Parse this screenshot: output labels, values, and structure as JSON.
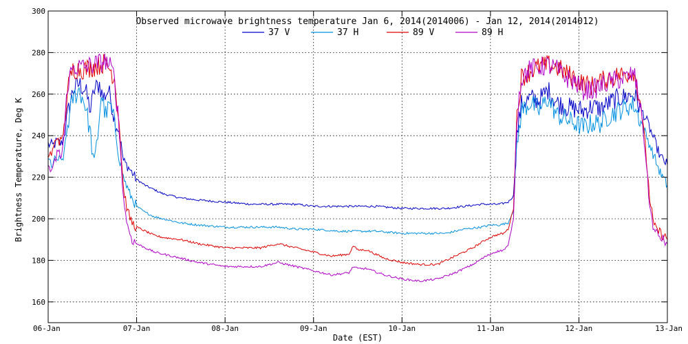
{
  "chart_data": {
    "type": "line",
    "title": "Observed microwave brightness temperature Jan  6, 2014(2014006) - Jan 12, 2014(2014012)",
    "xlabel": "Date (EST)",
    "ylabel": "Brightness Temperature, Deg K",
    "x_tick_labels": [
      "06-Jan",
      "07-Jan",
      "08-Jan",
      "09-Jan",
      "10-Jan",
      "11-Jan",
      "12-Jan",
      "13-Jan"
    ],
    "x_unit": "days since 06-Jan 00:00",
    "xlim": [
      0,
      7
    ],
    "ylim": [
      150,
      300
    ],
    "y_ticks": [
      160,
      180,
      200,
      220,
      240,
      260,
      280,
      300
    ],
    "grid": true,
    "legend_position": "top-center",
    "series": [
      {
        "name": "37 V",
        "color": "#0000c8",
        "points": [
          [
            0,
            236
          ],
          [
            0.05,
            235
          ],
          [
            0.1,
            237
          ],
          [
            0.15,
            236
          ],
          [
            0.18,
            240
          ],
          [
            0.22,
            250
          ],
          [
            0.28,
            262
          ],
          [
            0.35,
            265
          ],
          [
            0.42,
            262
          ],
          [
            0.48,
            252
          ],
          [
            0.52,
            262
          ],
          [
            0.58,
            265
          ],
          [
            0.62,
            258
          ],
          [
            0.68,
            262
          ],
          [
            0.72,
            255
          ],
          [
            0.75,
            248
          ],
          [
            0.8,
            243
          ],
          [
            0.85,
            228
          ],
          [
            0.92,
            224
          ],
          [
            1.0,
            219
          ],
          [
            1.1,
            216
          ],
          [
            1.2,
            214
          ],
          [
            1.3,
            212
          ],
          [
            1.5,
            210
          ],
          [
            1.7,
            209
          ],
          [
            2.0,
            208
          ],
          [
            2.3,
            207
          ],
          [
            2.6,
            207
          ],
          [
            2.8,
            207
          ],
          [
            3.0,
            206
          ],
          [
            3.3,
            206
          ],
          [
            3.5,
            206
          ],
          [
            3.7,
            206
          ],
          [
            4.0,
            205
          ],
          [
            4.2,
            205
          ],
          [
            4.5,
            205
          ],
          [
            4.7,
            206
          ],
          [
            4.9,
            207
          ],
          [
            5.0,
            207
          ],
          [
            5.1,
            207
          ],
          [
            5.2,
            208
          ],
          [
            5.26,
            211
          ],
          [
            5.3,
            240
          ],
          [
            5.35,
            255
          ],
          [
            5.45,
            258
          ],
          [
            5.55,
            257
          ],
          [
            5.65,
            262
          ],
          [
            5.75,
            256
          ],
          [
            5.85,
            254
          ],
          [
            5.95,
            253
          ],
          [
            6.05,
            252
          ],
          [
            6.15,
            254
          ],
          [
            6.25,
            253
          ],
          [
            6.35,
            256
          ],
          [
            6.45,
            258
          ],
          [
            6.55,
            259
          ],
          [
            6.62,
            260
          ],
          [
            6.7,
            253
          ],
          [
            6.78,
            246
          ],
          [
            6.85,
            238
          ],
          [
            6.92,
            230
          ],
          [
            7.0,
            226
          ]
        ]
      },
      {
        "name": "37 H",
        "color": "#0090e0",
        "points": [
          [
            0,
            228
          ],
          [
            0.05,
            226
          ],
          [
            0.1,
            229
          ],
          [
            0.15,
            227
          ],
          [
            0.18,
            232
          ],
          [
            0.22,
            245
          ],
          [
            0.28,
            258
          ],
          [
            0.35,
            262
          ],
          [
            0.42,
            255
          ],
          [
            0.48,
            240
          ],
          [
            0.52,
            225
          ],
          [
            0.56,
            240
          ],
          [
            0.6,
            260
          ],
          [
            0.65,
            250
          ],
          [
            0.7,
            255
          ],
          [
            0.75,
            246
          ],
          [
            0.8,
            232
          ],
          [
            0.85,
            220
          ],
          [
            0.92,
            212
          ],
          [
            1.0,
            206
          ],
          [
            1.1,
            203
          ],
          [
            1.2,
            201
          ],
          [
            1.3,
            200
          ],
          [
            1.5,
            198
          ],
          [
            1.7,
            197
          ],
          [
            2.0,
            196
          ],
          [
            2.3,
            196
          ],
          [
            2.6,
            196
          ],
          [
            2.8,
            195
          ],
          [
            3.0,
            195
          ],
          [
            3.3,
            194
          ],
          [
            3.5,
            194
          ],
          [
            3.7,
            194
          ],
          [
            4.0,
            193
          ],
          [
            4.2,
            193
          ],
          [
            4.5,
            193
          ],
          [
            4.7,
            195
          ],
          [
            4.9,
            196
          ],
          [
            5.0,
            197
          ],
          [
            5.1,
            197
          ],
          [
            5.2,
            198
          ],
          [
            5.26,
            204
          ],
          [
            5.3,
            235
          ],
          [
            5.35,
            252
          ],
          [
            5.45,
            256
          ],
          [
            5.55,
            252
          ],
          [
            5.65,
            258
          ],
          [
            5.75,
            250
          ],
          [
            5.85,
            248
          ],
          [
            5.95,
            246
          ],
          [
            6.05,
            244
          ],
          [
            6.15,
            246
          ],
          [
            6.25,
            246
          ],
          [
            6.35,
            250
          ],
          [
            6.45,
            252
          ],
          [
            6.55,
            254
          ],
          [
            6.62,
            255
          ],
          [
            6.7,
            247
          ],
          [
            6.78,
            238
          ],
          [
            6.85,
            230
          ],
          [
            6.92,
            222
          ],
          [
            7.0,
            216
          ]
        ]
      },
      {
        "name": "89 V",
        "color": "#e00000",
        "points": [
          [
            0,
            230
          ],
          [
            0.05,
            232
          ],
          [
            0.1,
            240
          ],
          [
            0.15,
            236
          ],
          [
            0.18,
            245
          ],
          [
            0.22,
            262
          ],
          [
            0.28,
            272
          ],
          [
            0.35,
            272
          ],
          [
            0.42,
            272
          ],
          [
            0.5,
            273
          ],
          [
            0.58,
            274
          ],
          [
            0.65,
            275
          ],
          [
            0.7,
            272
          ],
          [
            0.75,
            268
          ],
          [
            0.8,
            248
          ],
          [
            0.85,
            215
          ],
          [
            0.9,
            203
          ],
          [
            0.95,
            198
          ],
          [
            1.0,
            196
          ],
          [
            1.1,
            194
          ],
          [
            1.2,
            192
          ],
          [
            1.3,
            191
          ],
          [
            1.5,
            190
          ],
          [
            1.7,
            188
          ],
          [
            2.0,
            186
          ],
          [
            2.2,
            186
          ],
          [
            2.4,
            186
          ],
          [
            2.6,
            188
          ],
          [
            2.8,
            186
          ],
          [
            3.0,
            184
          ],
          [
            3.2,
            182
          ],
          [
            3.4,
            183
          ],
          [
            3.45,
            187
          ],
          [
            3.5,
            185
          ],
          [
            3.6,
            185
          ],
          [
            3.8,
            181
          ],
          [
            4.0,
            179
          ],
          [
            4.2,
            178
          ],
          [
            4.4,
            178
          ],
          [
            4.6,
            182
          ],
          [
            4.8,
            186
          ],
          [
            4.95,
            190
          ],
          [
            5.05,
            192
          ],
          [
            5.15,
            193
          ],
          [
            5.2,
            195
          ],
          [
            5.26,
            205
          ],
          [
            5.3,
            250
          ],
          [
            5.35,
            268
          ],
          [
            5.45,
            271
          ],
          [
            5.55,
            273
          ],
          [
            5.65,
            274
          ],
          [
            5.75,
            273
          ],
          [
            5.85,
            270
          ],
          [
            5.95,
            268
          ],
          [
            6.05,
            265
          ],
          [
            6.15,
            264
          ],
          [
            6.25,
            266
          ],
          [
            6.35,
            268
          ],
          [
            6.45,
            269
          ],
          [
            6.55,
            270
          ],
          [
            6.62,
            271
          ],
          [
            6.7,
            255
          ],
          [
            6.75,
            235
          ],
          [
            6.8,
            210
          ],
          [
            6.85,
            196
          ],
          [
            6.9,
            194
          ],
          [
            6.95,
            192
          ],
          [
            7.0,
            190
          ]
        ]
      },
      {
        "name": "89 H",
        "color": "#b000c8",
        "points": [
          [
            0,
            226
          ],
          [
            0.05,
            222
          ],
          [
            0.1,
            232
          ],
          [
            0.15,
            230
          ],
          [
            0.18,
            240
          ],
          [
            0.22,
            265
          ],
          [
            0.28,
            273
          ],
          [
            0.35,
            273
          ],
          [
            0.42,
            273
          ],
          [
            0.5,
            274
          ],
          [
            0.58,
            275
          ],
          [
            0.65,
            276
          ],
          [
            0.7,
            273
          ],
          [
            0.75,
            268
          ],
          [
            0.8,
            245
          ],
          [
            0.85,
            210
          ],
          [
            0.9,
            196
          ],
          [
            0.95,
            190
          ],
          [
            1.0,
            188
          ],
          [
            1.1,
            186
          ],
          [
            1.2,
            184
          ],
          [
            1.3,
            183
          ],
          [
            1.5,
            181
          ],
          [
            1.7,
            179
          ],
          [
            2.0,
            177
          ],
          [
            2.2,
            177
          ],
          [
            2.4,
            177
          ],
          [
            2.6,
            179
          ],
          [
            2.8,
            177
          ],
          [
            3.0,
            175
          ],
          [
            3.2,
            173
          ],
          [
            3.4,
            174
          ],
          [
            3.45,
            177
          ],
          [
            3.5,
            176
          ],
          [
            3.6,
            176
          ],
          [
            3.8,
            173
          ],
          [
            4.0,
            171
          ],
          [
            4.2,
            170
          ],
          [
            4.4,
            171
          ],
          [
            4.6,
            174
          ],
          [
            4.8,
            178
          ],
          [
            4.95,
            182
          ],
          [
            5.05,
            184
          ],
          [
            5.15,
            185
          ],
          [
            5.2,
            187
          ],
          [
            5.26,
            200
          ],
          [
            5.3,
            250
          ],
          [
            5.35,
            268
          ],
          [
            5.45,
            272
          ],
          [
            5.55,
            273
          ],
          [
            5.65,
            274
          ],
          [
            5.75,
            272
          ],
          [
            5.85,
            268
          ],
          [
            5.95,
            266
          ],
          [
            6.05,
            262
          ],
          [
            6.15,
            262
          ],
          [
            6.25,
            264
          ],
          [
            6.35,
            266
          ],
          [
            6.45,
            267
          ],
          [
            6.55,
            268
          ],
          [
            6.62,
            270
          ],
          [
            6.7,
            255
          ],
          [
            6.75,
            232
          ],
          [
            6.8,
            206
          ],
          [
            6.85,
            194
          ],
          [
            6.9,
            192
          ],
          [
            6.95,
            190
          ],
          [
            7.0,
            188
          ]
        ]
      }
    ]
  }
}
